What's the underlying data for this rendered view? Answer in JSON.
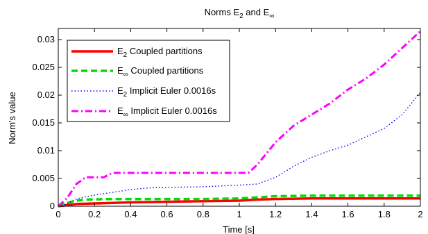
{
  "chart_data": {
    "type": "line",
    "title": {
      "base": "Norms E",
      "sub1": "2",
      "mid": " and E",
      "sub2": "∞"
    },
    "xlabel": "Time [s]",
    "ylabel": "Norm's value",
    "xlim": [
      0,
      2
    ],
    "ylim": [
      0,
      0.032
    ],
    "xticks": [
      0,
      0.2,
      0.4,
      0.6,
      0.8,
      1,
      1.2,
      1.4,
      1.6,
      1.8,
      2
    ],
    "yticks": [
      0,
      0.005,
      0.01,
      0.015,
      0.02,
      0.025,
      0.03
    ],
    "xtick_labels": [
      "0",
      "0.2",
      "0.4",
      "0.6",
      "0.8",
      "1",
      "1.2",
      "1.4",
      "1.6",
      "1.8",
      "2"
    ],
    "ytick_labels": [
      "0",
      "0.005",
      "0.01",
      "0.015",
      "0.02",
      "0.025",
      "0.03"
    ],
    "grid": false,
    "legend_position": "top-left",
    "series": [
      {
        "name": "E2 Coupled partitions",
        "legend_base": "E",
        "legend_sub": "2",
        "legend_rest": " Coupled partitions",
        "color": "#ff0000",
        "style": "solid",
        "x": [
          0,
          0.05,
          0.1,
          0.2,
          0.3,
          0.4,
          0.6,
          0.8,
          1.0,
          1.1,
          1.2,
          1.4,
          1.6,
          1.8,
          2.0
        ],
        "y": [
          0,
          0.0002,
          0.0004,
          0.0005,
          0.0006,
          0.0007,
          0.0008,
          0.0009,
          0.001,
          0.0012,
          0.0013,
          0.0014,
          0.0014,
          0.0014,
          0.0014
        ]
      },
      {
        "name": "E∞ Coupled partitions",
        "legend_base": "E",
        "legend_sub": "∞",
        "legend_rest": " Coupled partitions",
        "color": "#00dd00",
        "style": "dashed",
        "x": [
          0,
          0.05,
          0.1,
          0.15,
          0.3,
          0.5,
          0.8,
          1.0,
          1.1,
          1.2,
          1.4,
          1.6,
          1.8,
          2.0
        ],
        "y": [
          0,
          0.0006,
          0.001,
          0.0012,
          0.0013,
          0.0013,
          0.0013,
          0.0014,
          0.0016,
          0.0018,
          0.0019,
          0.0019,
          0.0019,
          0.0019
        ]
      },
      {
        "name": "E2 Implicit Euler 0.0016s",
        "legend_base": "E",
        "legend_sub": "2",
        "legend_rest": " Implicit Euler 0.0016s",
        "color": "#0000ff",
        "style": "dotted",
        "x": [
          0,
          0.05,
          0.1,
          0.15,
          0.2,
          0.3,
          0.4,
          0.5,
          0.6,
          0.8,
          1.0,
          1.1,
          1.2,
          1.3,
          1.4,
          1.5,
          1.6,
          1.7,
          1.8,
          1.9,
          2.0
        ],
        "y": [
          0,
          0.0005,
          0.0013,
          0.0017,
          0.002,
          0.0025,
          0.003,
          0.0033,
          0.0034,
          0.0035,
          0.0038,
          0.004,
          0.0052,
          0.0072,
          0.0088,
          0.01,
          0.011,
          0.0125,
          0.014,
          0.0165,
          0.0205
        ]
      },
      {
        "name": "E∞ Implicit Euler 0.0016s",
        "legend_base": "E",
        "legend_sub": "∞",
        "legend_rest": " Implicit Euler 0.0016s",
        "color": "#ff00ff",
        "style": "dashdot",
        "x": [
          0,
          0.05,
          0.1,
          0.15,
          0.2,
          0.25,
          0.3,
          0.5,
          0.8,
          1.0,
          1.05,
          1.1,
          1.2,
          1.3,
          1.4,
          1.5,
          1.6,
          1.7,
          1.8,
          1.9,
          2.0
        ],
        "y": [
          0,
          0.0015,
          0.004,
          0.0052,
          0.0052,
          0.0052,
          0.006,
          0.006,
          0.006,
          0.006,
          0.006,
          0.0075,
          0.0115,
          0.0145,
          0.0165,
          0.0185,
          0.021,
          0.023,
          0.0255,
          0.0285,
          0.0315
        ]
      }
    ]
  }
}
